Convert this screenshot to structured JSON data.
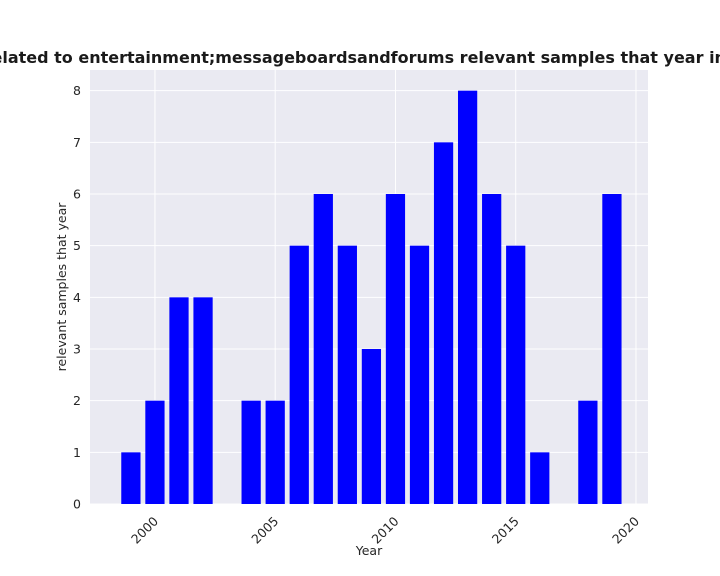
{
  "chart_data": {
    "type": "bar",
    "title": "es are related to entertainment;messageboardsandforums relevant samples that year in privacy",
    "xlabel": "Year",
    "ylabel": "relevant samples that year",
    "x": [
      1999,
      2000,
      2001,
      2002,
      2004,
      2005,
      2006,
      2007,
      2008,
      2009,
      2010,
      2011,
      2012,
      2013,
      2014,
      2015,
      2016,
      2018,
      2019
    ],
    "values": [
      1,
      2,
      4,
      4,
      2,
      2,
      5,
      6,
      5,
      3,
      6,
      5,
      7,
      8,
      6,
      5,
      1,
      2,
      6
    ],
    "xlim": [
      1997.3,
      2020.5
    ],
    "ylim": [
      0,
      8.4
    ],
    "xticks": [
      "2000",
      "2005",
      "2010",
      "2015",
      "2020"
    ],
    "yticks": [
      "0",
      "1",
      "2",
      "3",
      "4",
      "5",
      "6",
      "7",
      "8"
    ],
    "bar_color": "#0000ff",
    "plot_background": "#eaeaf2",
    "grid": true
  }
}
